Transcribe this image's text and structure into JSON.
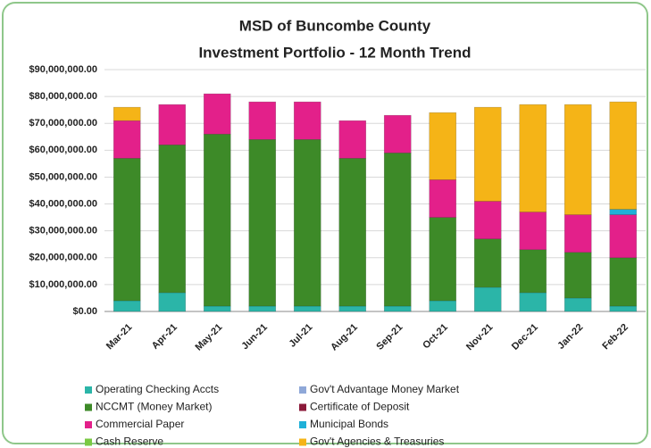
{
  "chart_data": {
    "type": "bar",
    "stacked": true,
    "title": "MSD of Buncombe County",
    "subtitle": "Investment Portfolio - 12 Month Trend",
    "categories": [
      "Mar-21",
      "Apr-21",
      "May-21",
      "Jun-21",
      "Jul-21",
      "Aug-21",
      "Sep-21",
      "Oct-21",
      "Nov-21",
      "Dec-21",
      "Jan-22",
      "Feb-22"
    ],
    "series": [
      {
        "name": "Operating Checking Accts",
        "color": "#2bb5a8",
        "values": [
          4000000,
          7000000,
          2000000,
          2000000,
          2000000,
          2000000,
          2000000,
          4000000,
          9000000,
          7000000,
          5000000,
          2000000
        ]
      },
      {
        "name": "Gov't Advantage Money Market",
        "color": "#8fa8d8",
        "values": [
          0,
          0,
          0,
          0,
          0,
          0,
          0,
          0,
          0,
          0,
          0,
          0
        ]
      },
      {
        "name": "NCCMT (Money Market)",
        "color": "#3d8a28",
        "values": [
          53000000,
          55000000,
          64000000,
          62000000,
          62000000,
          55000000,
          57000000,
          31000000,
          18000000,
          16000000,
          17000000,
          18000000
        ]
      },
      {
        "name": "Certificate of Deposit",
        "color": "#8b1a3a",
        "values": [
          0,
          0,
          0,
          0,
          0,
          0,
          0,
          0,
          0,
          0,
          0,
          0
        ]
      },
      {
        "name": "Commercial Paper",
        "color": "#e3208a",
        "values": [
          14000000,
          15000000,
          15000000,
          14000000,
          14000000,
          14000000,
          14000000,
          14000000,
          14000000,
          14000000,
          14000000,
          16000000
        ]
      },
      {
        "name": "Municipal Bonds",
        "color": "#1fb0d8",
        "values": [
          0,
          0,
          0,
          0,
          0,
          0,
          0,
          0,
          0,
          0,
          0,
          2000000
        ]
      },
      {
        "name": "Cash  Reserve",
        "color": "#7ac943",
        "values": [
          0,
          0,
          0,
          0,
          0,
          0,
          0,
          0,
          0,
          0,
          0,
          0
        ]
      },
      {
        "name": "Gov't Agencies & Treasuries",
        "color": "#f5b417",
        "values": [
          5000000,
          0,
          0,
          0,
          0,
          0,
          0,
          25000000,
          35000000,
          40000000,
          41000000,
          40000000
        ]
      }
    ],
    "ylim": [
      0,
      90000000
    ],
    "yticks": [
      {
        "value": 0,
        "label": "$0.00"
      },
      {
        "value": 10000000,
        "label": "$10,000,000.00"
      },
      {
        "value": 20000000,
        "label": "$20,000,000.00"
      },
      {
        "value": 30000000,
        "label": "$30,000,000.00"
      },
      {
        "value": 40000000,
        "label": "$40,000,000.00"
      },
      {
        "value": 50000000,
        "label": "$50,000,000.00"
      },
      {
        "value": 60000000,
        "label": "$60,000,000.00"
      },
      {
        "value": 70000000,
        "label": "$70,000,000.00"
      },
      {
        "value": 80000000,
        "label": "$80,000,000.00"
      },
      {
        "value": 90000000,
        "label": "$90,000,000.00"
      }
    ],
    "grid": true
  }
}
